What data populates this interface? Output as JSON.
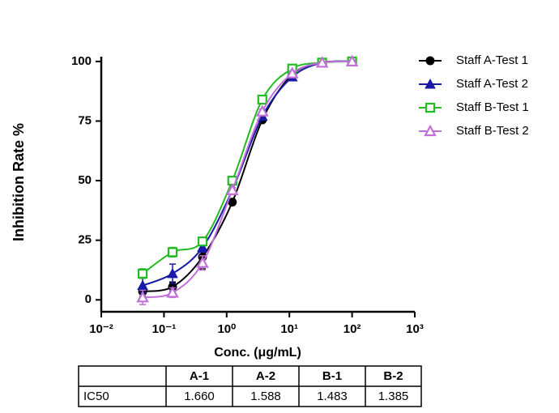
{
  "chart_data": {
    "type": "line",
    "xlabel": "Conc. (μg/mL)",
    "ylabel": "Inhibition Rate %",
    "x": [
      0.0457,
      0.137,
      0.412,
      1.23,
      3.7,
      11.1,
      33.3,
      100
    ],
    "log_x": true,
    "xlim": [
      0.01,
      1000
    ],
    "xticks": [
      {
        "value": 0.01,
        "label": "10⁻²"
      },
      {
        "value": 0.1,
        "label": "10⁻¹"
      },
      {
        "value": 1,
        "label": "10⁰"
      },
      {
        "value": 10,
        "label": "10¹"
      },
      {
        "value": 100,
        "label": "10²"
      },
      {
        "value": 1000,
        "label": "10³"
      }
    ],
    "ylim": [
      -5,
      102
    ],
    "yticks": [
      0,
      25,
      50,
      75,
      100
    ],
    "legend": "right",
    "series": [
      {
        "name": "Staff A-Test 1",
        "color": "#000000",
        "marker": "circle",
        "filled": true,
        "values": [
          3.5,
          5.5,
          18,
          41,
          75.5,
          94.5,
          99.5,
          100
        ],
        "errors": [
          2,
          2,
          5,
          1,
          1,
          1,
          0.5,
          0.5
        ]
      },
      {
        "name": "Staff A-Test 2",
        "color": "#1a1aa8",
        "marker": "triangle",
        "filled": true,
        "values": [
          6,
          11,
          22,
          46,
          77,
          93.5,
          99.5,
          100
        ],
        "errors": [
          3,
          4,
          2,
          1,
          1,
          1,
          0.5,
          0.5
        ]
      },
      {
        "name": "Staff B-Test 1",
        "color": "#22bb22",
        "marker": "square",
        "filled": false,
        "values": [
          11,
          20,
          24.5,
          50,
          84,
          97,
          99.5,
          100
        ],
        "errors": [
          2,
          2,
          1,
          1,
          1,
          1,
          0.5,
          0.5
        ]
      },
      {
        "name": "Staff B-Test 2",
        "color": "#c070d8",
        "marker": "triangle",
        "filled": false,
        "values": [
          1,
          3,
          15.5,
          46,
          79,
          95,
          99.5,
          100
        ],
        "errors": [
          3,
          2,
          3,
          1,
          1,
          1,
          0.5,
          0.5
        ]
      }
    ]
  },
  "table": {
    "header": [
      "A-1",
      "A-2",
      "B-1",
      "B-2"
    ],
    "row_label": "IC50",
    "row": [
      "1.660",
      "1.588",
      "1.483",
      "1.385"
    ]
  }
}
